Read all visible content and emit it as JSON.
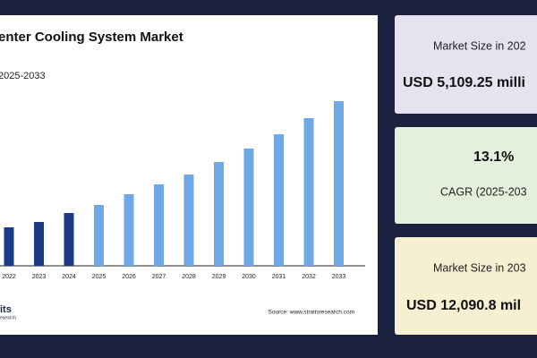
{
  "chart_data": {
    "type": "bar",
    "title": "enter Cooling System Market",
    "subtitle": "2025-2033",
    "categories": [
      "2022",
      "2023",
      "2024",
      "2025",
      "2026",
      "2027",
      "2028",
      "2029",
      "2030",
      "2031",
      "2032",
      "2033"
    ],
    "values": [
      2826,
      3220,
      3877,
      4468,
      5257,
      5980,
      6703,
      7622,
      8608,
      9660,
      10843,
      12091
    ],
    "colors": [
      "#1b3b85",
      "#1b3b85",
      "#1b3b85",
      "#6fa8e6",
      "#6fa8e6",
      "#6fa8e6",
      "#6fa8e6",
      "#6fa8e6",
      "#6fa8e6",
      "#6fa8e6",
      "#6fa8e6",
      "#6fa8e6"
    ],
    "source": "Source: www.straitsresearch.com",
    "logo": "its",
    "logo_sub": "esearch"
  },
  "cards": [
    {
      "label": "Market Size in 202",
      "value": "USD 5,109.25 milli"
    },
    {
      "label": "CAGR (2025-203",
      "value": "13.1%"
    },
    {
      "label": "Market Size in 203",
      "value": "USD 12,090.8 mil"
    }
  ]
}
